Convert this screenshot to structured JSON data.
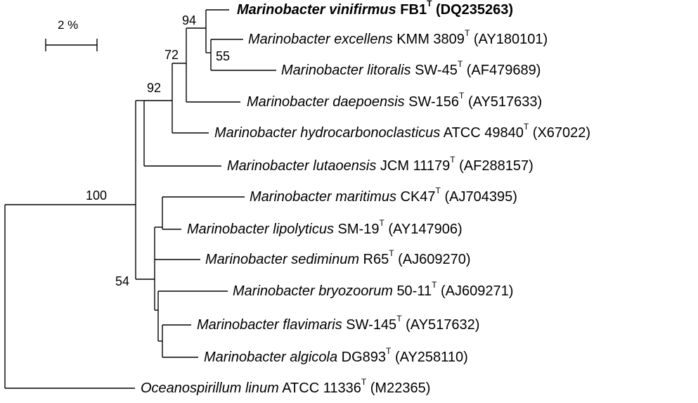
{
  "scale_bar": {
    "label": "2 %"
  },
  "taxa": [
    {
      "id": "vinifirmus",
      "name": "Marinobacter vinifirmus",
      "strain": "FB1",
      "type_mark": "T",
      "accession": "(DQ235263)",
      "bold": true
    },
    {
      "id": "excellens",
      "name": "Marinobacter excellens",
      "strain": "KMM 3809",
      "type_mark": "T",
      "accession": "(AY180101)",
      "bold": false
    },
    {
      "id": "litoralis",
      "name": "Marinobacter litoralis",
      "strain": "SW-45",
      "type_mark": "T",
      "accession": "(AF479689)",
      "bold": false
    },
    {
      "id": "daepoensis",
      "name": "Marinobacter daepoensis",
      "strain": "SW-156",
      "type_mark": "T",
      "accession": "(AY517633)",
      "bold": false
    },
    {
      "id": "hydrocarbonoclasticus",
      "name": "Marinobacter hydrocarbonoclasticus",
      "strain": "ATCC 49840",
      "type_mark": "T",
      "accession": "(X67022)",
      "bold": false
    },
    {
      "id": "lutaoensis",
      "name": "Marinobacter lutaoensis",
      "strain": "JCM 11179",
      "type_mark": "T",
      "accession": "(AF288157)",
      "bold": false
    },
    {
      "id": "maritimus",
      "name": "Marinobacter maritimus",
      "strain": "CK47",
      "type_mark": "T",
      "accession": "(AJ704395)",
      "bold": false
    },
    {
      "id": "lipolyticus",
      "name": "Marinobacter lipolyticus",
      "strain": "SM-19",
      "type_mark": "T",
      "accession": "(AY147906)",
      "bold": false
    },
    {
      "id": "sediminum",
      "name": "Marinobacter sediminum",
      "strain": "R65",
      "type_mark": "T",
      "accession": "(AJ609270)",
      "bold": false
    },
    {
      "id": "bryozoorum",
      "name": "Marinobacter bryozoorum",
      "strain": "50-11",
      "type_mark": "T",
      "accession": "(AJ609271)",
      "bold": false
    },
    {
      "id": "flavimaris",
      "name": "Marinobacter flavimaris",
      "strain": "SW-145",
      "type_mark": "T",
      "accession": "(AY517632)",
      "bold": false
    },
    {
      "id": "algicola",
      "name": "Marinobacter algicola",
      "strain": "DG893",
      "type_mark": "T",
      "accession": "(AY258110)",
      "bold": false
    },
    {
      "id": "linum",
      "name": "Oceanospirillum linum",
      "strain": "ATCC 11336",
      "type_mark": "T",
      "accession": "(M22365)",
      "bold": false
    }
  ],
  "bootstrap_values": {
    "root_marinobacter": "100",
    "clade_hydrocarbono": "92",
    "clade_daepoensis": "72",
    "clade_vinifirmus": "94",
    "clade_excellens": "55",
    "clade_lower": "54"
  }
}
